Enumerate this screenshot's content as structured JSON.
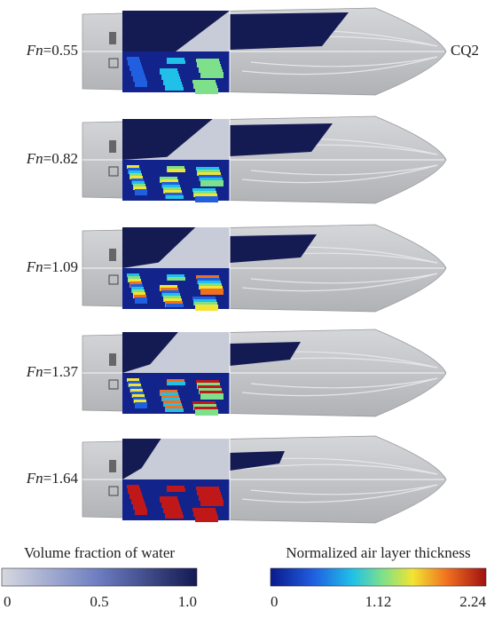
{
  "panels": [
    {
      "symbol": "Fn",
      "value": "=0.55"
    },
    {
      "symbol": "Fn",
      "value": "=0.82"
    },
    {
      "symbol": "Fn",
      "value": "=1.09"
    },
    {
      "symbol": "Fn",
      "value": "=1.37"
    },
    {
      "symbol": "Fn",
      "value": "=1.64"
    }
  ],
  "case_label": "CQ2",
  "colorbars": [
    {
      "title": "Volume fraction of water",
      "ticks": [
        "0",
        "0.5",
        "1.0"
      ]
    },
    {
      "title": "Normalized air layer thickness",
      "ticks": [
        "0",
        "1.12",
        "2.24"
      ]
    }
  ]
}
